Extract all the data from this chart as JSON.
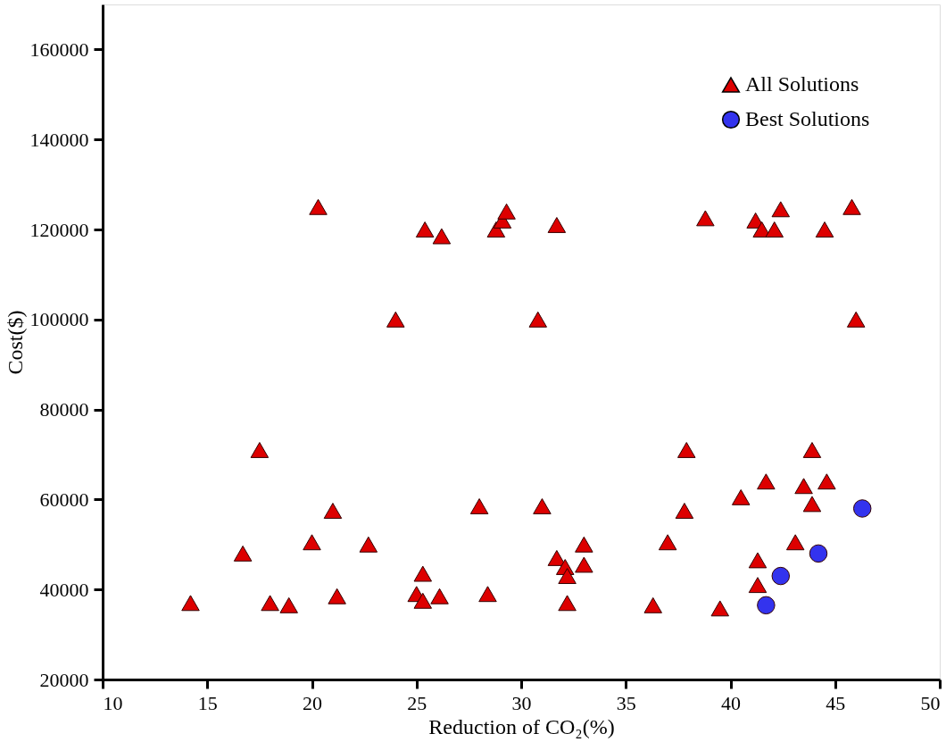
{
  "chart_data": {
    "type": "scatter",
    "xlabel": "Reduction of CO₂(%)",
    "ylabel": "Cost($)",
    "xlim": [
      10,
      50
    ],
    "xticks": [
      10,
      15,
      20,
      25,
      30,
      35,
      40,
      45,
      50
    ],
    "ylim": [
      20000,
      170000
    ],
    "yticks": [
      20000,
      40000,
      60000,
      80000,
      100000,
      120000,
      140000,
      160000
    ],
    "grid": false,
    "legend": "top right",
    "series": [
      {
        "name": "All Solutions",
        "color": "#dd0000",
        "marker": "triangle",
        "x": [
          20.3,
          25.4,
          26.2,
          28.8,
          29.1,
          29.3,
          31.7,
          38.8,
          41.2,
          41.5,
          42.1,
          42.4,
          44.5,
          45.8,
          24,
          30.8,
          46,
          17.5,
          16.7,
          14.2,
          18,
          18.9,
          20,
          21,
          21.2,
          22.7,
          25,
          25.3,
          25.3,
          26.1,
          28,
          28.4,
          31,
          31.7,
          32.1,
          32.2,
          32.2,
          33,
          33,
          36.3,
          37,
          37.8,
          37.9,
          39.5,
          40.5,
          41.3,
          41.3,
          41.7,
          43.1,
          43.5,
          43.9,
          43.9,
          44.6
        ],
        "values": [
          125000,
          120000,
          118500,
          120000,
          122000,
          124000,
          121000,
          122500,
          122000,
          120000,
          120000,
          124500,
          120000,
          125000,
          100000,
          100000,
          100000,
          71000,
          48000,
          37000,
          37000,
          36500,
          50500,
          57500,
          38500,
          50000,
          39000,
          43500,
          37500,
          38500,
          58500,
          39000,
          58500,
          47000,
          45000,
          43000,
          37000,
          50000,
          45500,
          36500,
          50500,
          57500,
          71000,
          35800,
          60500,
          46500,
          41000,
          64000,
          50500,
          63000,
          59000,
          71000,
          64000
        ]
      },
      {
        "name": "Best Solutions",
        "color": "#3333ee",
        "marker": "circle",
        "x": [
          41.7,
          42.4,
          44.2,
          46.3
        ],
        "values": [
          36500,
          43000,
          48000,
          58000
        ]
      }
    ]
  }
}
